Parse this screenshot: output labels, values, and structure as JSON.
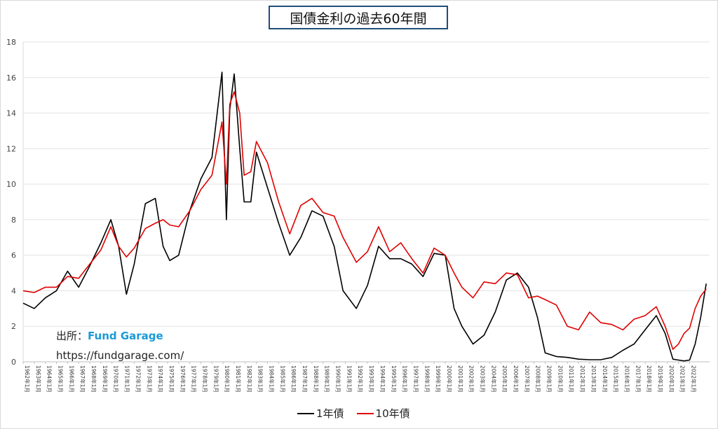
{
  "chart_data": {
    "type": "line",
    "title": "国債金利の過去60年間",
    "ylim": [
      0,
      18
    ],
    "yticks": [
      0,
      2,
      4,
      6,
      8,
      10,
      12,
      14,
      16,
      18
    ],
    "x_tick_labels": [
      "1962年1月",
      "1963年1月",
      "1964年1月",
      "1965年1月",
      "1966年1月",
      "1967年1月",
      "1968年1月",
      "1969年1月",
      "1970年1月",
      "1971年1月",
      "1972年1月",
      "1973年1月",
      "1974年1月",
      "1975年1月",
      "1976年1月",
      "1977年1月",
      "1978年1月",
      "1979年1月",
      "1980年1月",
      "1981年1月",
      "1982年1月",
      "1983年1月",
      "1984年1月",
      "1985年1月",
      "1986年1月",
      "1987年1月",
      "1988年1月",
      "1989年1月",
      "1990年1月",
      "1991年1月",
      "1992年1月",
      "1993年1月",
      "1994年1月",
      "1995年1月",
      "1996年1月",
      "1997年1月",
      "1998年1月",
      "1999年1月",
      "2000年1月",
      "2001年1月",
      "2002年1月",
      "2003年1月",
      "2004年1月",
      "2005年1月",
      "2006年1月",
      "2007年1月",
      "2008年1月",
      "2009年1月",
      "2010年1月",
      "2011年1月",
      "2012年1月",
      "2013年1月",
      "2014年1月",
      "2015年1月",
      "2016年1月",
      "2017年1月",
      "2018年1月",
      "2019年1月",
      "2020年1月",
      "2021年1月",
      "2022年1月"
    ],
    "x": [
      1962.0,
      1963.0,
      1964.0,
      1965.0,
      1966.0,
      1967.0,
      1968.0,
      1969.0,
      1969.9,
      1970.6,
      1971.3,
      1972.0,
      1973.0,
      1973.9,
      1974.6,
      1975.2,
      1976.0,
      1977.0,
      1978.0,
      1979.0,
      1979.9,
      1980.3,
      1980.6,
      1981.0,
      1981.5,
      1981.9,
      1982.5,
      1983.0,
      1984.0,
      1985.0,
      1986.0,
      1987.0,
      1988.0,
      1989.0,
      1990.0,
      1990.8,
      1992.0,
      1993.0,
      1994.0,
      1995.0,
      1996.0,
      1997.0,
      1998.0,
      1999.0,
      2000.0,
      2000.8,
      2001.5,
      2002.5,
      2003.5,
      2004.5,
      2005.5,
      2006.5,
      2007.5,
      2008.3,
      2009.0,
      2010.0,
      2011.0,
      2012.0,
      2013.0,
      2014.0,
      2015.0,
      2016.0,
      2017.0,
      2018.0,
      2019.0,
      2019.8,
      2020.5,
      2021.0,
      2021.5,
      2022.0,
      2022.5,
      2023.0,
      2023.5
    ],
    "series": [
      {
        "name": "1年債",
        "color": "#000000",
        "values": [
          3.3,
          3.0,
          3.6,
          4.0,
          5.1,
          4.2,
          5.4,
          6.7,
          8.0,
          6.5,
          3.8,
          5.5,
          8.9,
          9.2,
          6.5,
          5.7,
          6.0,
          8.5,
          10.3,
          11.5,
          16.3,
          8.0,
          14.2,
          16.2,
          12.0,
          9.0,
          9.0,
          11.8,
          9.8,
          7.8,
          6.0,
          7.0,
          8.5,
          8.2,
          6.5,
          4.0,
          3.0,
          4.3,
          6.5,
          5.8,
          5.8,
          5.5,
          4.8,
          6.1,
          6.0,
          3.0,
          2.0,
          1.0,
          1.5,
          2.8,
          4.6,
          5.0,
          4.2,
          2.5,
          0.5,
          0.3,
          0.25,
          0.15,
          0.12,
          0.12,
          0.25,
          0.65,
          1.0,
          1.8,
          2.6,
          1.6,
          0.15,
          0.1,
          0.05,
          0.1,
          1.0,
          2.5,
          4.4
        ]
      },
      {
        "name": "10年債",
        "color": "#e00000",
        "values": [
          4.0,
          3.9,
          4.2,
          4.2,
          4.8,
          4.7,
          5.5,
          6.3,
          7.6,
          6.5,
          5.9,
          6.4,
          7.5,
          7.8,
          8.0,
          7.7,
          7.6,
          8.5,
          9.7,
          10.5,
          13.5,
          10.0,
          14.5,
          15.2,
          14.0,
          10.5,
          10.7,
          12.4,
          11.2,
          9.0,
          7.2,
          8.8,
          9.2,
          8.4,
          8.2,
          7.0,
          5.6,
          6.2,
          7.6,
          6.2,
          6.7,
          5.8,
          5.0,
          6.4,
          6.0,
          5.0,
          4.2,
          3.6,
          4.5,
          4.4,
          5.0,
          4.9,
          3.6,
          3.7,
          3.5,
          3.2,
          2.0,
          1.8,
          2.8,
          2.2,
          2.1,
          1.8,
          2.4,
          2.6,
          3.1,
          2.0,
          0.7,
          1.0,
          1.6,
          1.9,
          3.0,
          3.7,
          4.1
        ]
      }
    ],
    "grid": true,
    "legend_position": "bottom-center"
  },
  "source": {
    "label": "出所：",
    "brand": "Fund Garage",
    "url": "https://fundgarage.com/"
  },
  "legend": {
    "items": [
      {
        "label": "1年債",
        "color": "#000000"
      },
      {
        "label": "10年債",
        "color": "#e00000"
      }
    ]
  }
}
